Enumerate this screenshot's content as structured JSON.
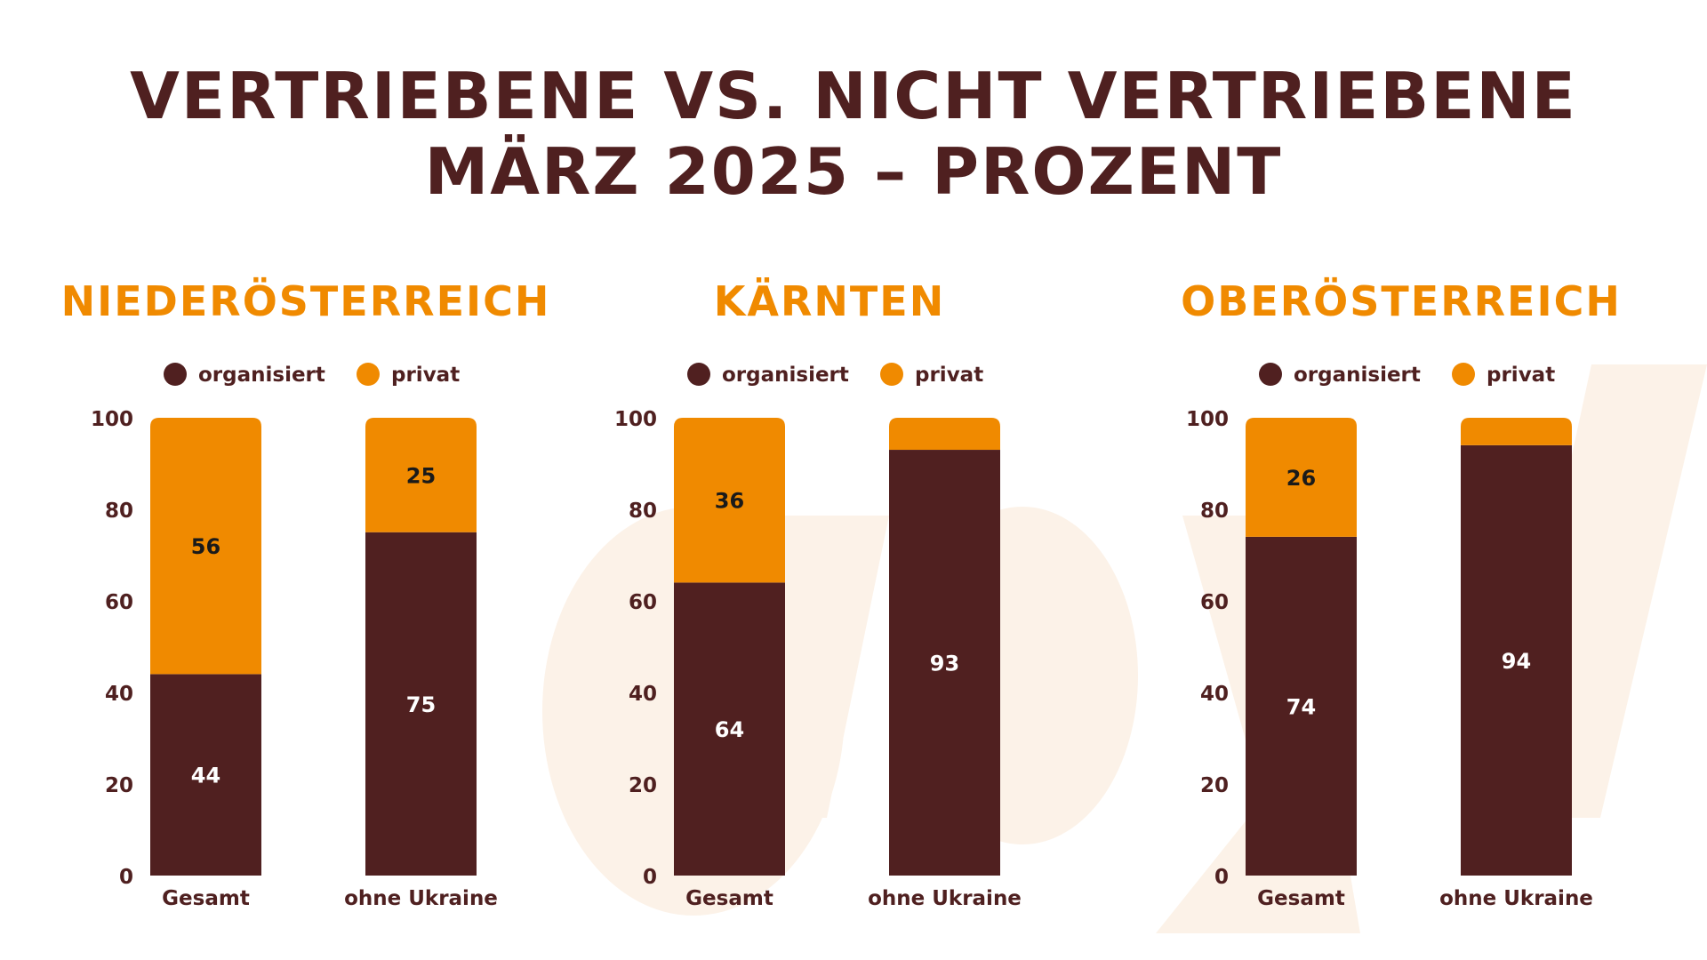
{
  "title_line1": "VERTRIEBENE VS. NICHT VERTRIEBENE",
  "title_line2": "MÄRZ 2025 – PROZENT",
  "watermark": "asyl",
  "colors": {
    "organisiert": "#502020",
    "privat": "#f08a00",
    "title": "#4f2020",
    "panel_title": "#f08a00"
  },
  "chart_data": [
    {
      "type": "bar",
      "stacked": true,
      "title": "NIEDERÖSTERREICH",
      "categories": [
        "Gesamt",
        "ohne Ukraine"
      ],
      "series": [
        {
          "name": "organisiert",
          "values": [
            44,
            75
          ],
          "labels_shown": [
            true,
            true
          ]
        },
        {
          "name": "privat",
          "values": [
            56,
            25
          ],
          "labels_shown": [
            true,
            true
          ]
        }
      ],
      "ylim": [
        0,
        100
      ],
      "yticks": [
        0,
        20,
        40,
        60,
        80,
        100
      ],
      "legend": "top"
    },
    {
      "type": "bar",
      "stacked": true,
      "title": "KÄRNTEN",
      "categories": [
        "Gesamt",
        "ohne Ukraine"
      ],
      "series": [
        {
          "name": "organisiert",
          "values": [
            64,
            93
          ],
          "labels_shown": [
            true,
            true
          ]
        },
        {
          "name": "privat",
          "values": [
            36,
            7
          ],
          "labels_shown": [
            true,
            false
          ]
        }
      ],
      "ylim": [
        0,
        100
      ],
      "yticks": [
        0,
        20,
        40,
        60,
        80,
        100
      ],
      "legend": "top"
    },
    {
      "type": "bar",
      "stacked": true,
      "title": "OBERÖSTERREICH",
      "categories": [
        "Gesamt",
        "ohne Ukraine"
      ],
      "series": [
        {
          "name": "organisiert",
          "values": [
            74,
            94
          ],
          "labels_shown": [
            true,
            true
          ]
        },
        {
          "name": "privat",
          "values": [
            26,
            6
          ],
          "labels_shown": [
            true,
            false
          ]
        }
      ],
      "ylim": [
        0,
        100
      ],
      "yticks": [
        0,
        20,
        40,
        60,
        80,
        100
      ],
      "legend": "top"
    }
  ]
}
